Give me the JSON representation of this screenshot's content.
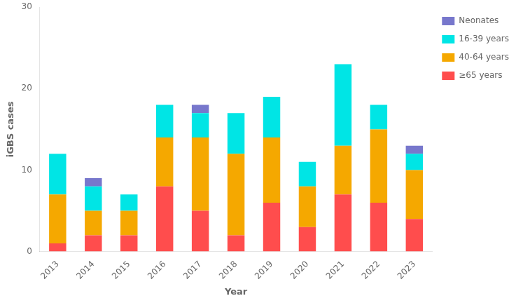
{
  "chart_data": {
    "type": "bar",
    "stacked": true,
    "xlabel": "Year",
    "ylabel": "iGBS cases",
    "categories": [
      "2013",
      "2014",
      "2015",
      "2016",
      "2017",
      "2018",
      "2019",
      "2020",
      "2021",
      "2022",
      "2023"
    ],
    "series": [
      {
        "name": "≥65 years",
        "color": "#ff4d4d",
        "values": [
          1,
          2,
          2,
          8,
          5,
          2,
          6,
          3,
          7,
          6,
          4
        ]
      },
      {
        "name": "40-64 years",
        "color": "#f5a800",
        "values": [
          6,
          3,
          3,
          6,
          9,
          10,
          8,
          5,
          6,
          9,
          6
        ]
      },
      {
        "name": "16-39 years",
        "color": "#00e5e5",
        "values": [
          5,
          3,
          2,
          4,
          3,
          5,
          5,
          3,
          10,
          3,
          2
        ]
      },
      {
        "name": "Neonates",
        "color": "#7777cc",
        "values": [
          0,
          1,
          0,
          0,
          1,
          0,
          0,
          0,
          0,
          0,
          1
        ]
      }
    ],
    "ylim": [
      0,
      30
    ],
    "yticks": [
      0,
      10,
      20,
      30
    ],
    "grid": false,
    "legend": "right"
  }
}
